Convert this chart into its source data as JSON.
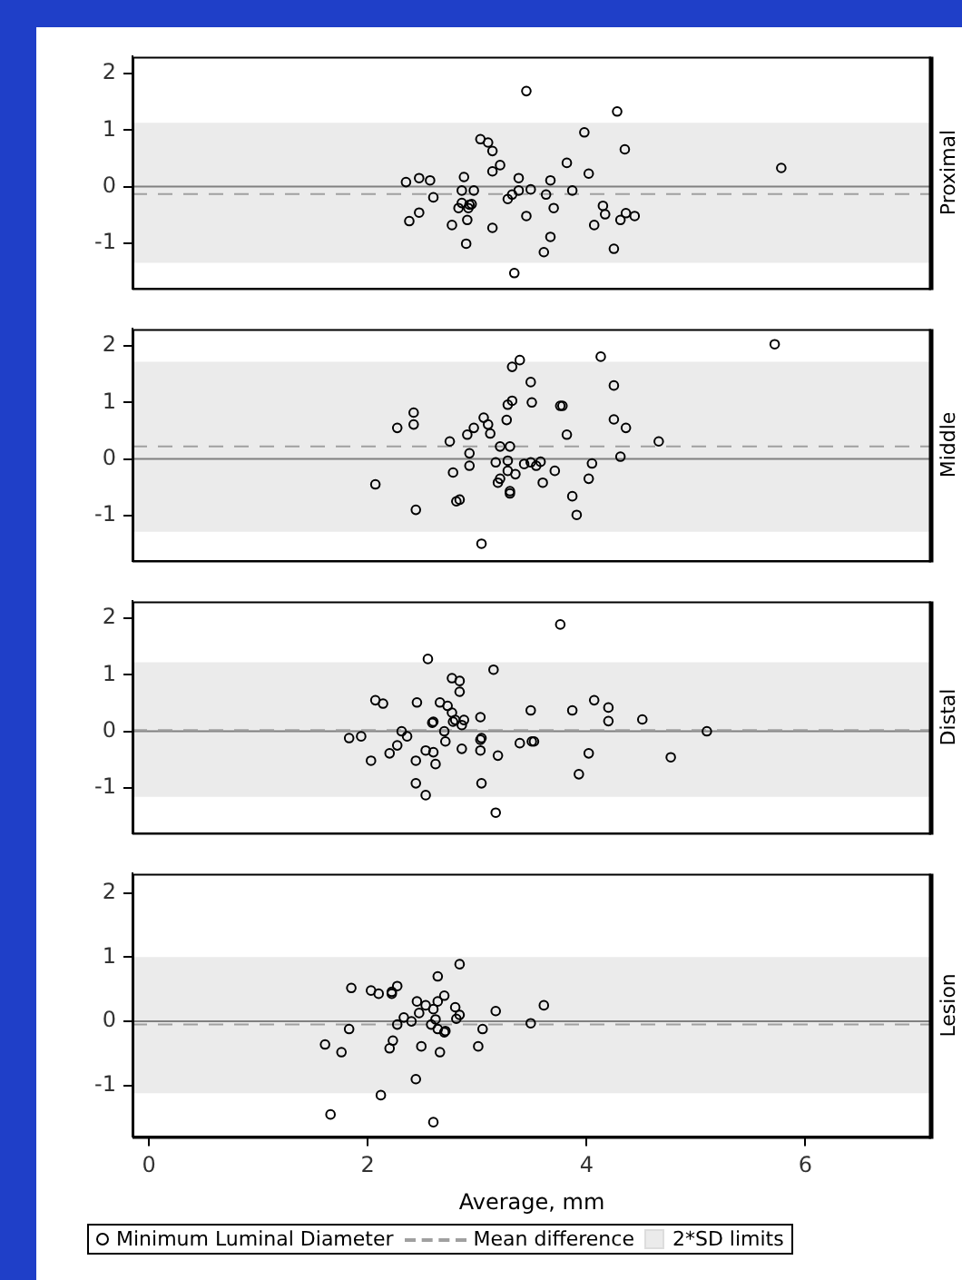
{
  "chart_data": [
    {
      "type": "scatter",
      "title": "Proximal",
      "xlim": [
        -0.15,
        7.15
      ],
      "ylim": [
        -1.8,
        2.3
      ],
      "xticks": [
        0,
        2,
        4,
        6
      ],
      "yticks": [
        -1,
        0,
        1,
        2
      ],
      "tick_labels": "y",
      "grid": false,
      "legend": false,
      "marker": "circle",
      "bands": [
        {
          "axis": "y",
          "from": -1.35,
          "to": 1.13,
          "color": "#ebebeb"
        }
      ],
      "ref_lines": [
        {
          "axis": "y",
          "value": 0,
          "color": "#808080"
        },
        {
          "axis": "y",
          "value": -0.13,
          "color": "#a0a0a0",
          "line_style": "dashed"
        }
      ],
      "series": [
        {
          "color": "#000000",
          "x": [
            3.45,
            4.28,
            3.98,
            3.03,
            3.1,
            3.14,
            4.35,
            3.21,
            3.82,
            3.14,
            4.02,
            5.78,
            2.35,
            2.47,
            2.57,
            2.88,
            3.38,
            3.67,
            2.6,
            2.86,
            2.97,
            3.49,
            3.38,
            3.87,
            3.32,
            3.28,
            3.63,
            2.86,
            2.93,
            2.95,
            2.83,
            2.92,
            3.7,
            2.47,
            2.38,
            2.77,
            2.91,
            3.45,
            4.15,
            4.17,
            4.36,
            4.44,
            4.31,
            4.07,
            3.14,
            2.9,
            3.67,
            3.61,
            4.25,
            3.34
          ],
          "values": [
            1.69,
            1.33,
            0.96,
            0.84,
            0.78,
            0.63,
            0.66,
            0.38,
            0.42,
            0.27,
            0.23,
            0.33,
            0.08,
            0.15,
            0.11,
            0.17,
            0.15,
            0.11,
            -0.19,
            -0.07,
            -0.07,
            -0.05,
            -0.07,
            -0.07,
            -0.14,
            -0.22,
            -0.14,
            -0.29,
            -0.32,
            -0.31,
            -0.38,
            -0.38,
            -0.38,
            -0.46,
            -0.61,
            -0.68,
            -0.59,
            -0.52,
            -0.34,
            -0.49,
            -0.47,
            -0.52,
            -0.59,
            -0.68,
            -0.73,
            -1.01,
            -0.89,
            -1.16,
            -1.1,
            -1.53
          ]
        }
      ]
    },
    {
      "type": "scatter",
      "title": "Middle",
      "xlim": [
        -0.15,
        7.15
      ],
      "ylim": [
        -1.8,
        2.3
      ],
      "xticks": [
        0,
        2,
        4,
        6
      ],
      "yticks": [
        -1,
        0,
        1,
        2
      ],
      "tick_labels": "y",
      "grid": false,
      "legend": false,
      "marker": "circle",
      "bands": [
        {
          "axis": "y",
          "from": -1.29,
          "to": 1.72,
          "color": "#ebebeb"
        }
      ],
      "ref_lines": [
        {
          "axis": "y",
          "value": 0,
          "color": "#808080"
        },
        {
          "axis": "y",
          "value": 0.22,
          "color": "#a0a0a0",
          "line_style": "dashed"
        }
      ],
      "series": [
        {
          "color": "#000000",
          "x": [
            5.72,
            3.39,
            3.32,
            4.13,
            3.49,
            4.25,
            3.32,
            3.28,
            3.5,
            3.76,
            3.78,
            2.42,
            2.27,
            2.42,
            3.06,
            3.1,
            3.27,
            4.25,
            4.36,
            2.97,
            2.91,
            3.12,
            3.82,
            2.75,
            3.21,
            3.3,
            4.66,
            2.93,
            4.31,
            3.28,
            3.17,
            2.93,
            2.78,
            3.43,
            3.49,
            3.58,
            3.54,
            3.28,
            3.35,
            4.05,
            3.71,
            3.6,
            3.21,
            3.19,
            4.02,
            2.07,
            3.3,
            3.3,
            3.87,
            2.81,
            2.84,
            2.44,
            3.91,
            3.04
          ],
          "values": [
            2.03,
            1.75,
            1.63,
            1.81,
            1.36,
            1.3,
            1.03,
            0.96,
            1.0,
            0.94,
            0.94,
            0.82,
            0.55,
            0.61,
            0.73,
            0.61,
            0.69,
            0.7,
            0.55,
            0.55,
            0.43,
            0.45,
            0.43,
            0.31,
            0.22,
            0.22,
            0.31,
            0.1,
            0.04,
            -0.03,
            -0.06,
            -0.12,
            -0.24,
            -0.09,
            -0.06,
            -0.05,
            -0.12,
            -0.21,
            -0.27,
            -0.08,
            -0.21,
            -0.42,
            -0.35,
            -0.42,
            -0.35,
            -0.45,
            -0.57,
            -0.61,
            -0.66,
            -0.75,
            -0.72,
            -0.9,
            -0.99,
            -1.5
          ]
        }
      ]
    },
    {
      "type": "scatter",
      "title": "Distal",
      "xlim": [
        -0.15,
        7.15
      ],
      "ylim": [
        -1.8,
        2.3
      ],
      "xticks": [
        0,
        2,
        4,
        6
      ],
      "yticks": [
        -1,
        0,
        1,
        2
      ],
      "tick_labels": "y",
      "grid": false,
      "legend": false,
      "marker": "circle",
      "bands": [
        {
          "axis": "y",
          "from": -1.16,
          "to": 1.22,
          "color": "#ebebeb"
        }
      ],
      "ref_lines": [
        {
          "axis": "y",
          "value": 0,
          "color": "#808080"
        },
        {
          "axis": "y",
          "value": 0.02,
          "color": "#a0a0a0",
          "line_style": "dashed"
        }
      ],
      "series": [
        {
          "color": "#000000",
          "x": [
            3.76,
            2.55,
            3.15,
            2.77,
            2.84,
            2.84,
            2.07,
            2.14,
            2.45,
            2.66,
            2.73,
            4.07,
            4.2,
            2.77,
            3.49,
            3.87,
            3.03,
            2.8,
            2.78,
            2.88,
            2.6,
            2.59,
            4.2,
            4.51,
            2.86,
            2.7,
            2.31,
            5.1,
            1.83,
            1.94,
            2.36,
            3.04,
            3.03,
            2.71,
            3.39,
            3.5,
            3.52,
            2.27,
            2.2,
            2.53,
            2.6,
            2.86,
            3.03,
            3.19,
            4.02,
            4.77,
            2.03,
            2.44,
            2.62,
            3.93,
            2.44,
            3.04,
            2.53,
            3.17
          ],
          "values": [
            1.89,
            1.28,
            1.09,
            0.94,
            0.89,
            0.7,
            0.55,
            0.49,
            0.51,
            0.51,
            0.45,
            0.55,
            0.42,
            0.33,
            0.37,
            0.37,
            0.25,
            0.2,
            0.17,
            0.2,
            0.17,
            0.15,
            0.18,
            0.21,
            0.11,
            0.0,
            0.0,
            0.0,
            -0.12,
            -0.09,
            -0.09,
            -0.12,
            -0.15,
            -0.18,
            -0.21,
            -0.18,
            -0.18,
            -0.25,
            -0.39,
            -0.34,
            -0.37,
            -0.31,
            -0.34,
            -0.43,
            -0.39,
            -0.46,
            -0.52,
            -0.52,
            -0.58,
            -0.76,
            -0.92,
            -0.92,
            -1.13,
            -1.44
          ]
        }
      ]
    },
    {
      "type": "scatter",
      "title": "Lesion",
      "xlabel": "Average, mm",
      "xlim": [
        -0.15,
        7.15
      ],
      "ylim": [
        -1.8,
        2.3
      ],
      "xticks": [
        0,
        2,
        4,
        6
      ],
      "yticks": [
        -1,
        0,
        1,
        2
      ],
      "grid": false,
      "legend": "bottom",
      "marker": "circle",
      "bands": [
        {
          "axis": "y",
          "from": -1.12,
          "to": 1.0,
          "color": "#ebebeb",
          "label": "2*SD limits"
        }
      ],
      "ref_lines": [
        {
          "axis": "y",
          "value": 0,
          "color": "#808080"
        },
        {
          "axis": "y",
          "value": -0.05,
          "color": "#a0a0a0",
          "line_style": "dashed",
          "label": "Mean difference"
        }
      ],
      "series": [
        {
          "name": "Minimum Luminal Diameter",
          "color": "#000000",
          "x": [
            2.84,
            2.64,
            1.85,
            2.03,
            2.1,
            2.22,
            2.22,
            2.27,
            2.7,
            2.45,
            2.64,
            2.53,
            2.6,
            2.47,
            2.8,
            3.17,
            3.61,
            2.84,
            2.81,
            2.33,
            2.4,
            2.62,
            2.27,
            2.58,
            2.64,
            2.7,
            2.71,
            3.49,
            3.05,
            1.83,
            1.61,
            1.76,
            2.23,
            2.2,
            2.49,
            2.66,
            3.01,
            2.44,
            2.12,
            1.66,
            2.6
          ],
          "values": [
            0.89,
            0.7,
            0.52,
            0.48,
            0.43,
            0.46,
            0.43,
            0.55,
            0.4,
            0.31,
            0.31,
            0.25,
            0.19,
            0.13,
            0.22,
            0.16,
            0.25,
            0.1,
            0.04,
            0.06,
            0.0,
            0.03,
            -0.05,
            -0.05,
            -0.12,
            -0.17,
            -0.15,
            -0.03,
            -0.12,
            -0.12,
            -0.36,
            -0.48,
            -0.3,
            -0.42,
            -0.39,
            -0.48,
            -0.39,
            -0.9,
            -1.15,
            -1.45,
            -1.57
          ]
        }
      ]
    }
  ]
}
